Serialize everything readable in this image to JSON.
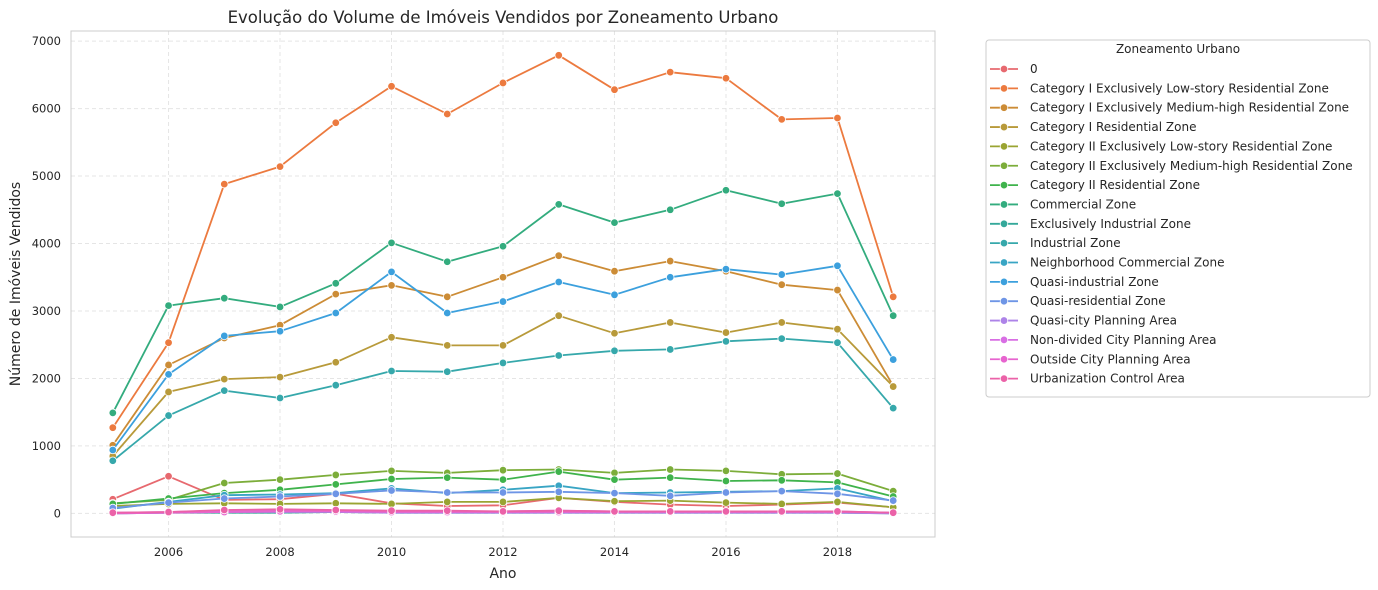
{
  "chart_data": {
    "type": "line",
    "title": "Evolução do Volume de Imóveis Vendidos por Zoneamento Urbano",
    "xlabel": "Ano",
    "ylabel": "Número de Imóveis Vendidos",
    "xlim": [
      2004.25,
      2019.75
    ],
    "ylim": [
      -350,
      7150
    ],
    "xticks": [
      2006,
      2008,
      2010,
      2012,
      2014,
      2016,
      2018
    ],
    "yticks": [
      0,
      1000,
      2000,
      3000,
      4000,
      5000,
      6000,
      7000
    ],
    "grid": true,
    "legend_title": "Zoneamento Urbano",
    "legend_placement": "outside-right-top",
    "x": [
      2005,
      2006,
      2007,
      2008,
      2009,
      2010,
      2011,
      2012,
      2013,
      2014,
      2015,
      2016,
      2017,
      2018,
      2019
    ],
    "series": [
      {
        "name": "0",
        "color": "#e7696f",
        "values": [
          210,
          550,
          200,
          210,
          290,
          150,
          110,
          120,
          230,
          170,
          130,
          110,
          130,
          160,
          90
        ]
      },
      {
        "name": "Category I Exclusively Low-story Residential Zone",
        "color": "#ec7a3f",
        "values": [
          1270,
          2530,
          4880,
          5140,
          5790,
          6330,
          5920,
          6380,
          6790,
          6280,
          6540,
          6450,
          5840,
          5860,
          3210
        ]
      },
      {
        "name": "Category I Exclusively Medium-high Residential Zone",
        "color": "#cc8c36",
        "values": [
          1010,
          2200,
          2600,
          2790,
          3250,
          3380,
          3210,
          3500,
          3820,
          3590,
          3740,
          3590,
          3390,
          3310,
          1890
        ]
      },
      {
        "name": "Category I Residential Zone",
        "color": "#b89a3a",
        "values": [
          850,
          1800,
          1990,
          2020,
          2240,
          2610,
          2490,
          2490,
          2930,
          2670,
          2830,
          2680,
          2830,
          2730,
          1880
        ]
      },
      {
        "name": "Category II Exclusively Low-story Residential Zone",
        "color": "#9aa432",
        "values": [
          110,
          140,
          150,
          140,
          150,
          140,
          170,
          170,
          230,
          180,
          190,
          160,
          140,
          170,
          90
        ]
      },
      {
        "name": "Category II Exclusively Medium-high Residential Zone",
        "color": "#7cad3a",
        "values": [
          150,
          200,
          450,
          500,
          570,
          630,
          600,
          640,
          650,
          600,
          650,
          630,
          580,
          590,
          330
        ]
      },
      {
        "name": "Category II Residential Zone",
        "color": "#3fb34c",
        "values": [
          140,
          220,
          300,
          350,
          430,
          510,
          530,
          500,
          620,
          500,
          530,
          480,
          490,
          460,
          250
        ]
      },
      {
        "name": "Commercial Zone",
        "color": "#33ac7e",
        "values": [
          1490,
          3080,
          3190,
          3060,
          3410,
          4010,
          3730,
          3960,
          4580,
          4310,
          4500,
          4790,
          4590,
          4740,
          2930
        ]
      },
      {
        "name": "Exclusively Industrial Zone",
        "color": "#34a89a",
        "values": [
          0,
          10,
          10,
          10,
          20,
          10,
          10,
          10,
          10,
          10,
          10,
          10,
          10,
          10,
          0
        ]
      },
      {
        "name": "Industrial Zone",
        "color": "#36a8ab",
        "values": [
          780,
          1450,
          1820,
          1710,
          1900,
          2110,
          2100,
          2230,
          2340,
          2410,
          2430,
          2550,
          2590,
          2530,
          1560
        ]
      },
      {
        "name": "Neighborhood Commercial Zone",
        "color": "#39a5c4",
        "values": [
          70,
          170,
          270,
          280,
          300,
          370,
          300,
          350,
          410,
          300,
          310,
          320,
          330,
          370,
          180
        ]
      },
      {
        "name": "Quasi-industrial Zone",
        "color": "#3ca0dd",
        "values": [
          940,
          2060,
          2630,
          2700,
          2970,
          3580,
          2970,
          3140,
          3430,
          3240,
          3500,
          3620,
          3540,
          3670,
          2280
        ]
      },
      {
        "name": "Quasi-residential Zone",
        "color": "#6e95e6",
        "values": [
          80,
          160,
          220,
          250,
          290,
          340,
          310,
          310,
          320,
          300,
          260,
          310,
          330,
          290,
          190
        ]
      },
      {
        "name": "Quasi-city Planning Area",
        "color": "#ad83e8",
        "values": [
          0,
          10,
          20,
          20,
          20,
          10,
          10,
          10,
          10,
          10,
          10,
          10,
          10,
          10,
          0
        ]
      },
      {
        "name": "Non-divided City Planning Area",
        "color": "#d86ee4",
        "values": [
          10,
          20,
          40,
          40,
          40,
          30,
          30,
          30,
          40,
          30,
          30,
          30,
          30,
          30,
          10
        ]
      },
      {
        "name": "Outside City Planning Area",
        "color": "#e764cf",
        "values": [
          0,
          10,
          20,
          30,
          30,
          20,
          20,
          20,
          20,
          20,
          20,
          20,
          20,
          20,
          10
        ]
      },
      {
        "name": "Urbanization Control Area",
        "color": "#eb62a8",
        "values": [
          10,
          20,
          50,
          60,
          50,
          40,
          40,
          30,
          40,
          30,
          30,
          30,
          30,
          30,
          10
        ]
      }
    ]
  }
}
